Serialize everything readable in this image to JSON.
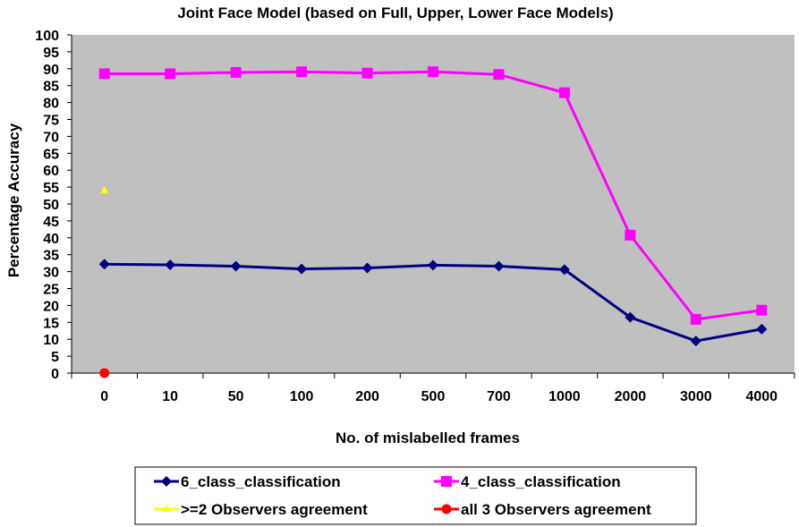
{
  "chart_data": {
    "type": "line",
    "title": "Joint Face Model (based on Full, Upper, Lower Face Models)",
    "xlabel": "No. of mislabelled frames",
    "ylabel": "Percentage Accuracy",
    "categories": [
      "0",
      "10",
      "50",
      "100",
      "200",
      "500",
      "700",
      "1000",
      "2000",
      "3000",
      "4000"
    ],
    "ylim": [
      0,
      100
    ],
    "yticks": [
      0,
      5,
      10,
      15,
      20,
      25,
      30,
      35,
      40,
      45,
      50,
      55,
      60,
      65,
      70,
      75,
      80,
      85,
      90,
      95,
      100
    ],
    "grid": false,
    "legend_position": "bottom",
    "series": [
      {
        "name": "6_class_classification",
        "marker": "diamond",
        "color": "#000080",
        "values": [
          32.2,
          32,
          31.6,
          30.8,
          31.1,
          31.9,
          31.6,
          30.6,
          16.5,
          9.5,
          13
        ]
      },
      {
        "name": "4_class_classification",
        "marker": "square",
        "color": "#FF00FF",
        "values": [
          88.5,
          88.5,
          88.9,
          89.1,
          88.7,
          89.1,
          88.3,
          82.9,
          40.8,
          15.9,
          18.6
        ]
      },
      {
        "name": ">=2 Observers agreement",
        "marker": "triangle",
        "color": "#FFFF00",
        "values": [
          54,
          null,
          null,
          null,
          null,
          null,
          null,
          null,
          null,
          null,
          null
        ]
      },
      {
        "name": "all 3 Observers agreement",
        "marker": "circle",
        "color": "#FF0000",
        "values": [
          0,
          null,
          null,
          null,
          null,
          null,
          null,
          null,
          null,
          null,
          null
        ]
      }
    ],
    "plot_background": "#C0C0C0"
  }
}
